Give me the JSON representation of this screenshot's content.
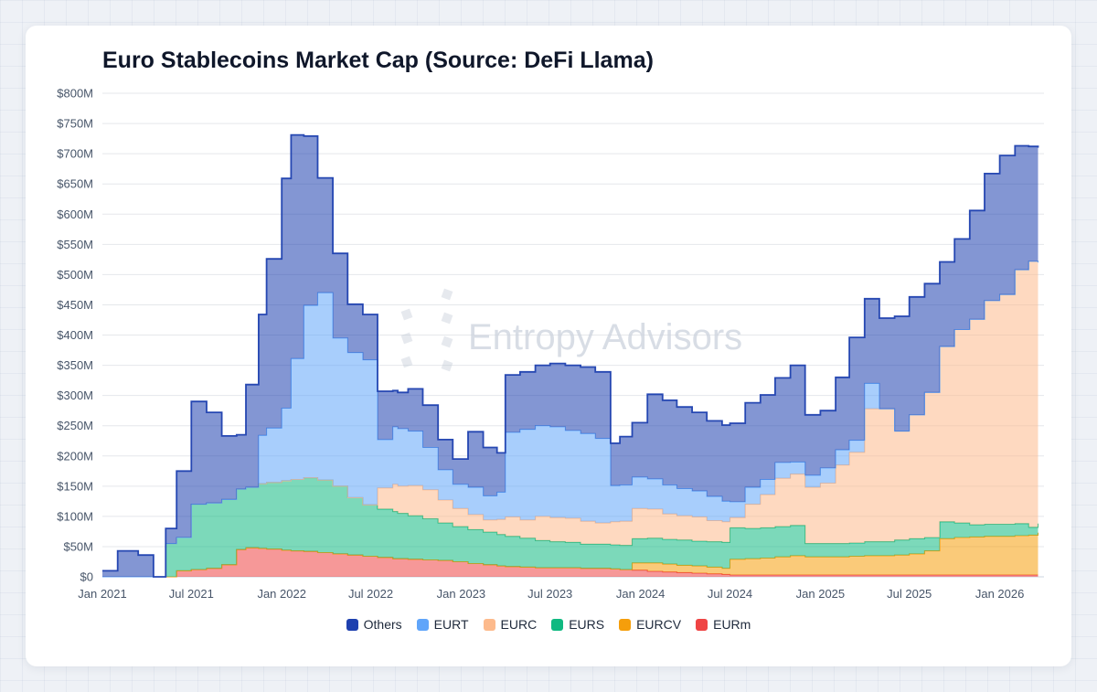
{
  "title": "Euro Stablecoins Market Cap (Source: DeFi Llama)",
  "watermark": "Entropy Advisors",
  "chart_data": {
    "type": "area",
    "stacked": true,
    "title": "Euro Stablecoins Market Cap (Source: DeFi Llama)",
    "xlabel": "",
    "ylabel": "",
    "x_range": [
      "2021-01-01",
      "2026-04-01"
    ],
    "ylim": [
      0,
      800
    ],
    "y_unit": "M USD",
    "y_ticks": [
      0,
      50,
      100,
      150,
      200,
      250,
      300,
      350,
      400,
      450,
      500,
      550,
      600,
      650,
      700,
      750,
      800
    ],
    "y_tick_labels": [
      "$0",
      "$50M",
      "$100M",
      "$150M",
      "$200M",
      "$250M",
      "$300M",
      "$350M",
      "$400M",
      "$450M",
      "$500M",
      "$550M",
      "$600M",
      "$650M",
      "$700M",
      "$750M",
      "$800M"
    ],
    "x_ticks": [
      "2021-01-01",
      "2021-07-01",
      "2022-01-01",
      "2022-07-01",
      "2023-01-01",
      "2023-07-01",
      "2024-01-01",
      "2024-07-01",
      "2025-01-01",
      "2025-07-01",
      "2026-01-01"
    ],
    "x_tick_labels": [
      "Jan 2021",
      "Jul 2021",
      "Jan 2022",
      "Jul 2022",
      "Jan 2023",
      "Jul 2023",
      "Jan 2024",
      "Jul 2024",
      "Jan 2025",
      "Jul 2025",
      "Jan 2026"
    ],
    "grid": true,
    "legend_position": "bottom",
    "x": [
      "2021-01-01",
      "2021-02-01",
      "2021-03-15",
      "2021-04-15",
      "2021-05-10",
      "2021-06-01",
      "2021-07-01",
      "2021-08-01",
      "2021-09-01",
      "2021-10-01",
      "2021-10-20",
      "2021-11-15",
      "2021-12-01",
      "2022-01-01",
      "2022-01-20",
      "2022-02-15",
      "2022-03-15",
      "2022-04-15",
      "2022-05-15",
      "2022-06-15",
      "2022-07-15",
      "2022-08-15",
      "2022-08-25",
      "2022-09-15",
      "2022-10-15",
      "2022-11-15",
      "2022-12-15",
      "2023-01-15",
      "2023-02-15",
      "2023-03-15",
      "2023-04-01",
      "2023-05-01",
      "2023-06-01",
      "2023-07-01",
      "2023-08-01",
      "2023-09-01",
      "2023-10-01",
      "2023-11-01",
      "2023-11-20",
      "2023-12-15",
      "2024-01-15",
      "2024-02-15",
      "2024-03-15",
      "2024-04-15",
      "2024-05-15",
      "2024-06-15",
      "2024-07-01",
      "2024-08-01",
      "2024-09-01",
      "2024-10-01",
      "2024-11-01",
      "2024-12-01",
      "2025-01-01",
      "2025-02-01",
      "2025-03-01",
      "2025-04-01",
      "2025-05-01",
      "2025-06-01",
      "2025-07-01",
      "2025-08-01",
      "2025-09-01",
      "2025-10-01",
      "2025-11-01",
      "2025-12-01",
      "2026-01-01",
      "2026-02-01",
      "2026-03-01",
      "2026-03-20"
    ],
    "series": [
      {
        "name": "EURm",
        "color": "#ef4444",
        "values": [
          0,
          0,
          0,
          0,
          0,
          10,
          12,
          14,
          20,
          45,
          48,
          47,
          46,
          44,
          43,
          42,
          40,
          38,
          36,
          34,
          32,
          30,
          30,
          29,
          28,
          27,
          25,
          22,
          20,
          18,
          17,
          16,
          15,
          15,
          15,
          14,
          14,
          13,
          12,
          11,
          9,
          8,
          7,
          6,
          5,
          4,
          3,
          3,
          3,
          3,
          3,
          3,
          3,
          3,
          3,
          3,
          3,
          3,
          3,
          3,
          3,
          3,
          3,
          3,
          3,
          3,
          3,
          3
        ]
      },
      {
        "name": "EURCV",
        "color": "#f59e0b",
        "values": [
          0,
          0,
          0,
          0,
          0,
          0,
          0,
          0,
          0,
          0,
          0,
          0,
          0,
          0,
          0,
          0,
          0,
          0,
          0,
          0,
          0,
          0,
          0,
          0,
          0,
          0,
          0,
          0,
          0,
          0,
          0,
          0,
          0,
          0,
          0,
          0,
          0,
          0,
          0,
          12,
          14,
          13,
          12,
          12,
          11,
          10,
          26,
          27,
          28,
          30,
          32,
          30,
          30,
          30,
          31,
          32,
          32,
          33,
          35,
          40,
          60,
          62,
          63,
          64,
          64,
          65,
          66,
          70
        ]
      },
      {
        "name": "EURS",
        "color": "#10b981",
        "values": [
          0,
          0,
          0,
          0,
          55,
          55,
          108,
          108,
          108,
          100,
          100,
          107,
          110,
          115,
          118,
          122,
          120,
          112,
          95,
          85,
          80,
          78,
          75,
          72,
          68,
          62,
          58,
          56,
          54,
          52,
          50,
          48,
          45,
          43,
          42,
          40,
          40,
          40,
          40,
          40,
          41,
          41,
          42,
          41,
          42,
          43,
          52,
          50,
          50,
          50,
          50,
          22,
          22,
          22,
          22,
          23,
          23,
          25,
          25,
          22,
          28,
          24,
          20,
          20,
          20,
          20,
          13,
          15
        ]
      },
      {
        "name": "EURC",
        "color": "#fdba8c",
        "values": [
          0,
          0,
          0,
          0,
          0,
          0,
          0,
          0,
          0,
          0,
          0,
          0,
          0,
          0,
          0,
          0,
          0,
          0,
          0,
          0,
          35,
          45,
          45,
          50,
          48,
          38,
          30,
          25,
          20,
          25,
          32,
          30,
          40,
          40,
          40,
          38,
          35,
          38,
          40,
          50,
          48,
          42,
          40,
          40,
          35,
          34,
          17,
          40,
          55,
          80,
          85,
          93,
          100,
          130,
          150,
          220,
          220,
          180,
          205,
          240,
          290,
          320,
          340,
          370,
          380,
          420,
          440,
          432
        ]
      },
      {
        "name": "EURT",
        "color": "#60a5fa",
        "values": [
          0,
          0,
          0,
          0,
          0,
          0,
          0,
          0,
          0,
          0,
          0,
          80,
          90,
          120,
          200,
          285,
          310,
          245,
          240,
          240,
          80,
          95,
          95,
          90,
          70,
          50,
          40,
          45,
          40,
          45,
          140,
          150,
          150,
          150,
          145,
          145,
          140,
          60,
          60,
          52,
          50,
          48,
          45,
          43,
          40,
          34,
          26,
          28,
          25,
          26,
          20,
          20,
          25,
          25,
          20,
          42,
          0,
          0,
          0,
          0,
          0,
          0,
          0,
          0,
          0,
          0,
          0,
          0
        ]
      },
      {
        "name": "Others",
        "color": "#1e40af",
        "values": [
          10,
          43,
          36,
          0,
          25,
          110,
          170,
          150,
          105,
          90,
          170,
          200,
          280,
          380,
          370,
          280,
          190,
          140,
          80,
          75,
          80,
          60,
          60,
          70,
          70,
          50,
          42,
          92,
          80,
          65,
          95,
          95,
          100,
          105,
          108,
          110,
          110,
          70,
          80,
          90,
          140,
          140,
          135,
          130,
          125,
          126,
          130,
          140,
          140,
          140,
          160,
          100,
          95,
          120,
          170,
          140,
          150,
          190,
          195,
          180,
          140,
          150,
          180,
          210,
          230,
          205,
          190,
          190
        ]
      }
    ],
    "legend": [
      "Others",
      "EURT",
      "EURC",
      "EURS",
      "EURCV",
      "EURm"
    ]
  }
}
